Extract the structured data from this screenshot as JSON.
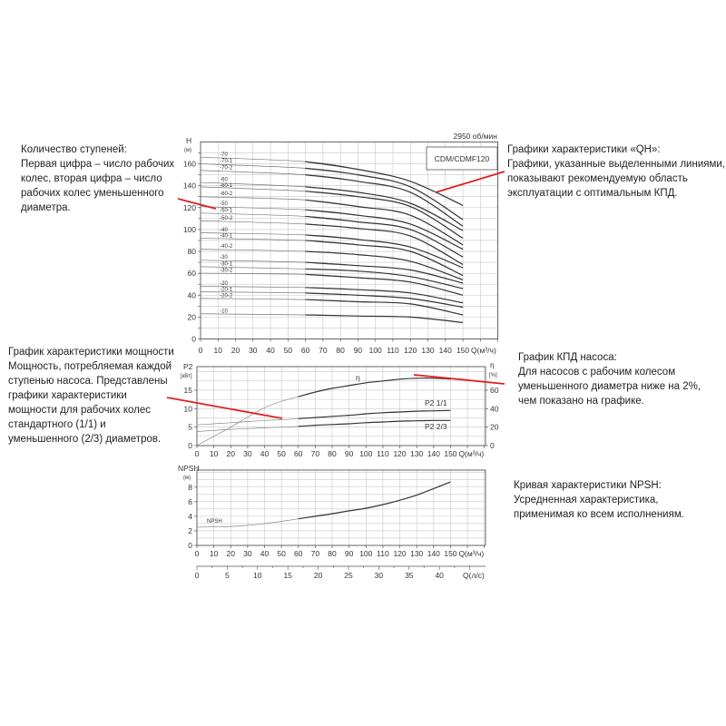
{
  "annotations": {
    "stages": [
      "Количество ступеней:",
      "Первая цифра – число рабочих",
      "колес, вторая цифра – число",
      "рабочих колес уменьшенного",
      "диаметра."
    ],
    "qh": [
      "Графики характеристики «QH»:",
      "Графики, указанные выделенными линиями,",
      "показывают рекомендуемую область",
      "эксплуатации с оптимальным КПД."
    ],
    "power": [
      "График характеристики мощности",
      "Мощность, потребляемая каждой",
      "ступенью насоса. Представлены",
      "графики характеристики",
      "мощности для рабочих колес",
      "стандартного (1/1) и",
      "уменьшенного (2/3) диаметров."
    ],
    "efficiency": [
      "График КПД насоса:",
      "Для насосов с рабочим колесом",
      "уменьшенного диаметра ниже на 2%,",
      "чем показано на графике."
    ],
    "npsh": [
      "Кривая характеристики NPSH:",
      "Усредненная характеристика,",
      "применимая ко всем исполнениям."
    ],
    "pointer_color": "#e02020"
  },
  "chart_data": [
    {
      "type": "line",
      "title": "CDM/CDMF120",
      "subtitle": "2950 об/мин",
      "xlabel": "Q(м³/ч)",
      "ylabel": "H",
      "yunit": "(м)",
      "xlim": [
        0,
        170
      ],
      "ylim": [
        0,
        180
      ],
      "xticks": [
        0,
        10,
        20,
        30,
        40,
        50,
        60,
        70,
        80,
        90,
        100,
        110,
        120,
        130,
        140,
        150
      ],
      "yticks": [
        0,
        20,
        40,
        60,
        80,
        100,
        120,
        140,
        160
      ],
      "grid": true,
      "x": [
        0,
        60,
        90,
        120,
        150
      ],
      "recommended_range": [
        60,
        150
      ],
      "series": [
        {
          "name": "-70",
          "values": [
            166,
            162,
            155,
            144,
            122
          ]
        },
        {
          "name": "-70-1",
          "values": [
            160,
            156,
            150,
            139,
            109
          ]
        },
        {
          "name": "-70-2",
          "values": [
            154,
            150,
            144,
            134,
            103
          ]
        },
        {
          "name": "-60",
          "values": [
            143,
            139,
            134,
            124,
            99
          ]
        },
        {
          "name": "-60-1",
          "values": [
            139,
            135,
            130,
            121,
            92
          ]
        },
        {
          "name": "-60-2",
          "values": [
            130,
            127,
            121,
            113,
            86
          ]
        },
        {
          "name": "-50",
          "values": [
            121,
            118,
            113,
            105,
            82
          ]
        },
        {
          "name": "-50-1",
          "values": [
            115,
            112,
            107,
            100,
            75
          ]
        },
        {
          "name": "-50-2",
          "values": [
            108,
            105,
            101,
            94,
            68
          ]
        },
        {
          "name": "-40",
          "values": [
            97,
            95,
            91,
            84,
            65
          ]
        },
        {
          "name": "-40-1",
          "values": [
            92,
            90,
            86,
            80,
            58
          ]
        },
        {
          "name": "-40-2",
          "values": [
            82,
            80,
            77,
            71,
            54
          ]
        },
        {
          "name": "-30",
          "values": [
            72,
            70,
            67,
            63,
            51
          ]
        },
        {
          "name": "-30-1",
          "values": [
            66,
            64,
            62,
            57,
            46
          ]
        },
        {
          "name": "-30-2",
          "values": [
            60,
            59,
            56,
            52,
            40
          ]
        },
        {
          "name": "-20",
          "values": [
            48,
            47,
            45,
            42,
            33
          ]
        },
        {
          "name": "-20-1",
          "values": [
            43,
            42,
            40,
            37,
            29
          ]
        },
        {
          "name": "-20-2",
          "values": [
            37,
            36,
            34,
            32,
            22
          ]
        },
        {
          "name": "-10",
          "values": [
            23,
            22,
            21,
            20,
            15
          ]
        }
      ]
    },
    {
      "type": "line",
      "xlabel": "Q(м³/ч)",
      "ylabel": "P2",
      "yunit": "[кВт]",
      "y2label": "η",
      "y2unit": "[%]",
      "xlim": [
        0,
        170
      ],
      "ylim": [
        0,
        21
      ],
      "y2lim": [
        0,
        84
      ],
      "xticks": [
        0,
        10,
        20,
        30,
        40,
        50,
        60,
        70,
        80,
        90,
        100,
        110,
        120,
        130,
        140,
        150
      ],
      "yticks": [
        0,
        5,
        10,
        15
      ],
      "y2ticks": [
        0,
        20,
        40,
        60
      ],
      "grid": true,
      "x": [
        0,
        10,
        20,
        30,
        40,
        50,
        60,
        70,
        80,
        90,
        100,
        110,
        120,
        130,
        140,
        150
      ],
      "series": [
        {
          "name": "η",
          "axis": "right",
          "values": [
            0,
            10,
            20,
            31,
            41,
            48,
            53,
            58,
            62,
            65,
            68,
            70,
            72,
            73,
            73,
            72
          ]
        },
        {
          "name": "P2 1/1",
          "axis": "left",
          "values": [
            5.6,
            5.9,
            6.2,
            6.5,
            6.8,
            7.0,
            7.3,
            7.6,
            7.9,
            8.2,
            8.6,
            8.9,
            9.1,
            9.3,
            9.4,
            9.5
          ]
        },
        {
          "name": "P2 2/3",
          "axis": "left",
          "values": [
            3.8,
            4.1,
            4.4,
            4.6,
            4.8,
            5.0,
            5.2,
            5.5,
            5.7,
            5.9,
            6.2,
            6.4,
            6.6,
            6.7,
            6.8,
            6.8
          ]
        }
      ]
    },
    {
      "type": "line",
      "xlabel": "Q(м³/ч)",
      "ylabel": "NPSH",
      "yunit": "(м)",
      "xlim": [
        0,
        170
      ],
      "ylim": [
        0,
        10
      ],
      "xticks": [
        0,
        10,
        20,
        30,
        40,
        50,
        60,
        70,
        80,
        90,
        100,
        110,
        120,
        130,
        140,
        150
      ],
      "yticks": [
        0,
        2,
        4,
        6,
        8
      ],
      "grid": true,
      "x": [
        0,
        10,
        20,
        30,
        40,
        50,
        60,
        70,
        80,
        90,
        100,
        110,
        120,
        130,
        140,
        150
      ],
      "series": [
        {
          "name": "NPSH",
          "values": [
            2.5,
            2.55,
            2.6,
            2.75,
            3.0,
            3.3,
            3.65,
            4.0,
            4.35,
            4.75,
            5.1,
            5.6,
            6.2,
            6.9,
            7.8,
            8.7
          ]
        }
      ],
      "secondary_x_axis": {
        "label": "Q(л/с)",
        "ticks": [
          0,
          5,
          10,
          15,
          20,
          25,
          30,
          35,
          40
        ]
      }
    }
  ]
}
